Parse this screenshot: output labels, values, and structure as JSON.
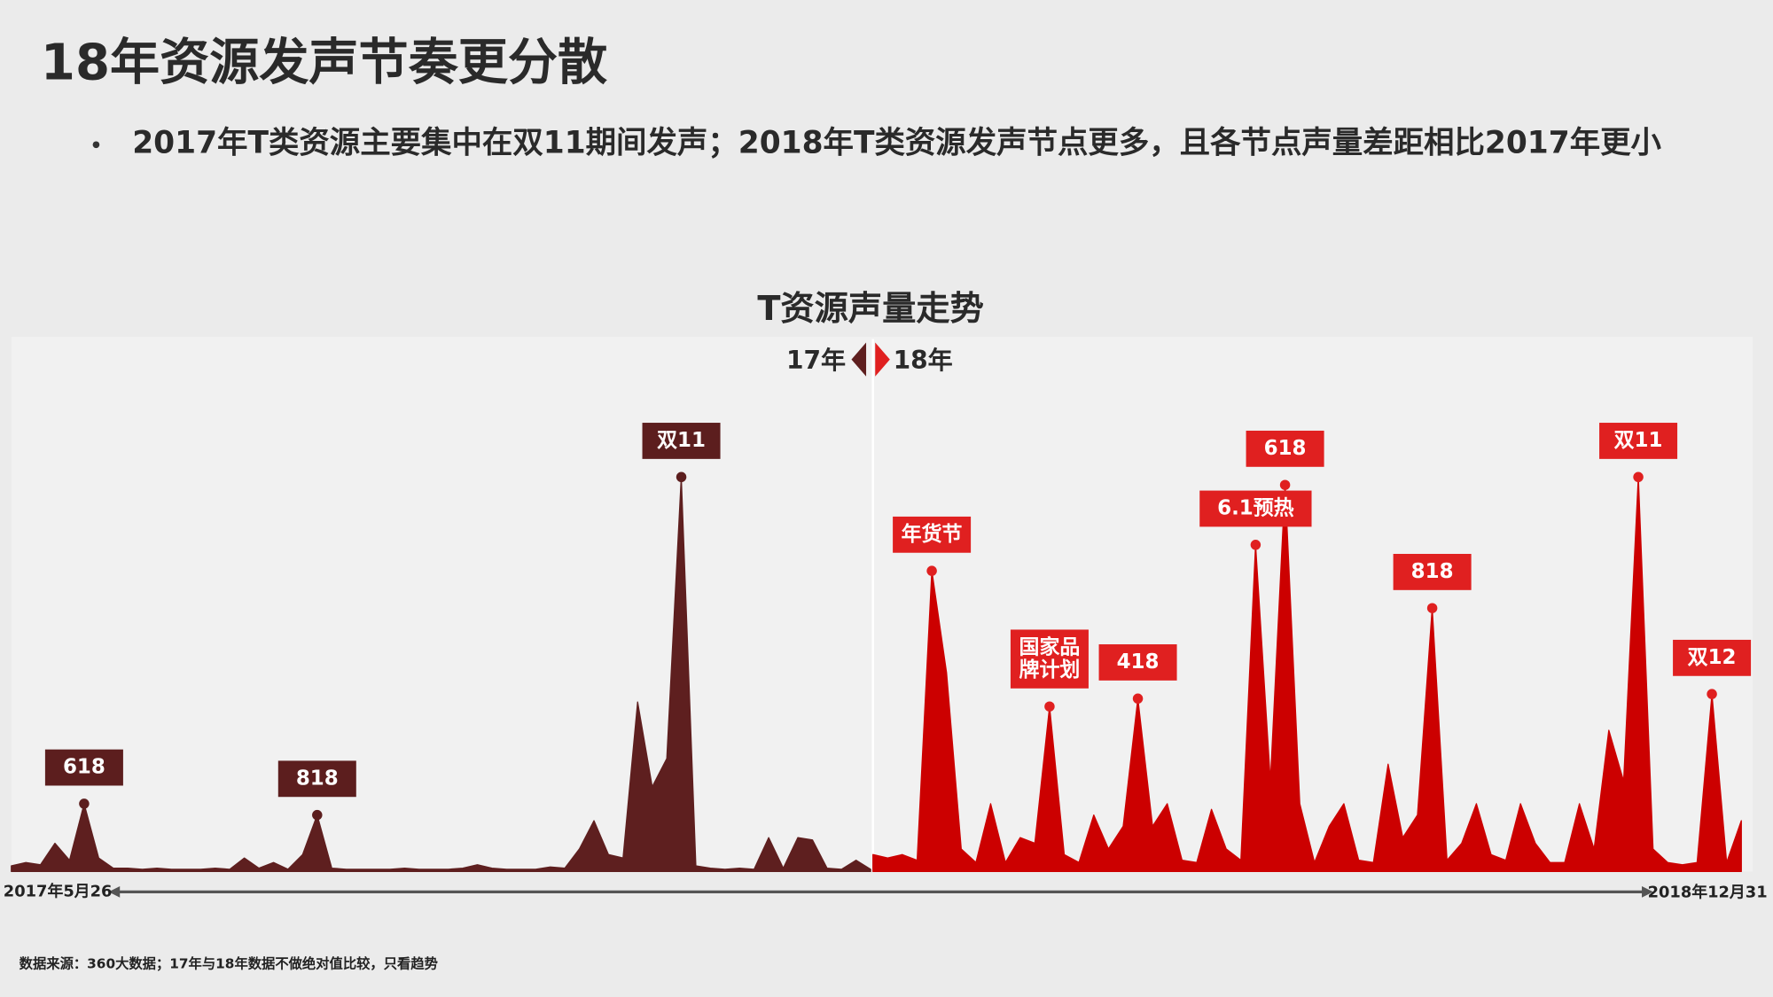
{
  "title": "18年资源发声节奏更分散",
  "bullet": "2017年T类资源主要集中在双11期间发声；2018年T类资源发声节点更多，且各节点声量差距相比2017年更小",
  "source_note": "数据来源：360大数据；17年与18年数据不做绝对值比较，只看趋势",
  "chart_data": {
    "type": "area",
    "title": "T资源声量走势",
    "x_start_label": "2017年5月26",
    "x_end_label": "2018年12月31",
    "series": [
      {
        "name": "17年",
        "color": "#5e1f1f",
        "values": [
          5,
          8,
          6,
          25,
          10,
          60,
          12,
          3,
          3,
          2,
          3,
          2,
          2,
          2,
          3,
          2,
          12,
          3,
          8,
          2,
          15,
          50,
          3,
          2,
          2,
          2,
          2,
          3,
          2,
          2,
          2,
          3,
          6,
          3,
          2,
          2,
          2,
          4,
          3,
          20,
          45,
          15,
          12,
          150,
          75,
          100,
          349,
          5,
          3,
          2,
          3,
          2,
          30,
          3,
          30,
          28,
          3,
          2,
          10,
          2
        ],
        "annotations": [
          {
            "text": [
              "618"
            ],
            "index": 5
          },
          {
            "text": [
              "818"
            ],
            "index": 21
          },
          {
            "text": [
              "双11"
            ],
            "index": 46
          }
        ]
      },
      {
        "name": "18年",
        "color": "#cc0000",
        "values": [
          15,
          12,
          15,
          10,
          266,
          176,
          20,
          8,
          60,
          8,
          30,
          25,
          146,
          15,
          8,
          50,
          20,
          40,
          153,
          40,
          60,
          10,
          8,
          55,
          20,
          10,
          289,
          80,
          342,
          60,
          8,
          40,
          60,
          10,
          8,
          95,
          30,
          50,
          233,
          10,
          25,
          60,
          15,
          10,
          60,
          25,
          8,
          8,
          60,
          20,
          125,
          80,
          349,
          20,
          8,
          6,
          8,
          157,
          8,
          45
        ],
        "annotations": [
          {
            "text": [
              "年货节"
            ],
            "index": 4
          },
          {
            "text": [
              "国家品",
              "牌计划"
            ],
            "index": 12
          },
          {
            "text": [
              "418"
            ],
            "index": 18
          },
          {
            "text": [
              "6.1预热"
            ],
            "index": 26
          },
          {
            "text": [
              "618"
            ],
            "index": 28
          },
          {
            "text": [
              "818"
            ],
            "index": 38
          },
          {
            "text": [
              "双11"
            ],
            "index": 52
          },
          {
            "text": [
              "双12"
            ],
            "index": 57
          }
        ]
      }
    ]
  }
}
